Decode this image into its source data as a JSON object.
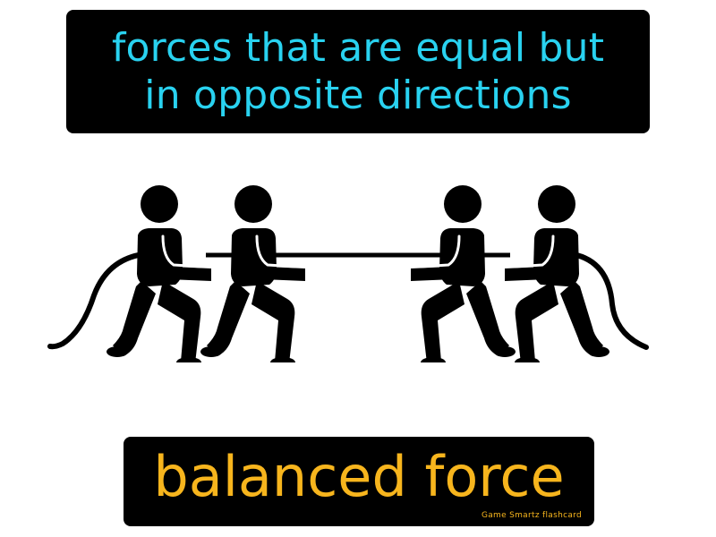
{
  "definition": {
    "lines": [
      "forces that are equal but",
      "in opposite directions"
    ],
    "color": "#29d2f0"
  },
  "illustration": {
    "icon": "tug-of-war-icon",
    "figures": 4
  },
  "term": {
    "label": "balanced force",
    "color": "#f7b51d"
  },
  "brand": {
    "label": "Game Smartz flashcard"
  }
}
